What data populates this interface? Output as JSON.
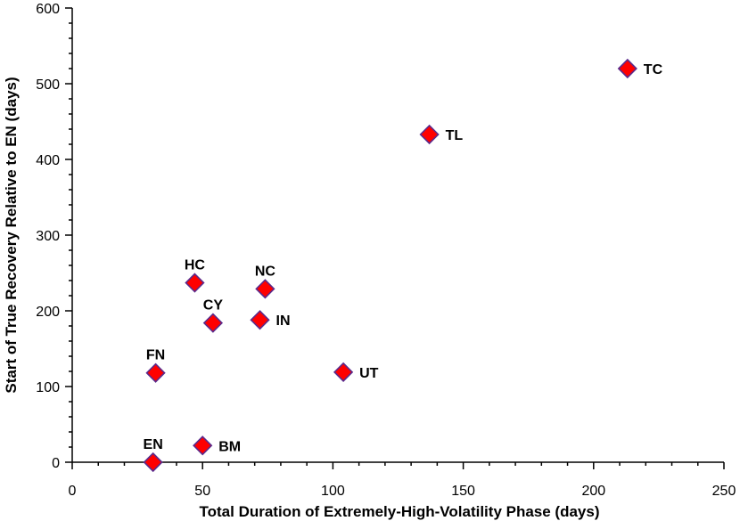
{
  "chart_data": {
    "type": "scatter",
    "title": "",
    "xlabel": "Total Duration of Extremely-High-Volatility Phase (days)",
    "ylabel": "Start of True Recovery Relative to EN (days)",
    "xlim": [
      0,
      250
    ],
    "ylim": [
      0,
      600
    ],
    "x_ticks": [
      0,
      50,
      100,
      150,
      200,
      250
    ],
    "y_ticks": [
      0,
      100,
      200,
      300,
      400,
      500,
      600
    ],
    "x_tick_labels": [
      "0",
      "50",
      "100",
      "150",
      "200",
      "250"
    ],
    "y_tick_labels": [
      "0",
      "100",
      "200",
      "300",
      "400",
      "500",
      "600"
    ],
    "grid": false,
    "marker": {
      "shape": "diamond",
      "fill": "#ff0000",
      "edge": "#5a2a8c"
    },
    "points": [
      {
        "label": "EN",
        "x": 31,
        "y": 0,
        "label_pos": "above"
      },
      {
        "label": "BM",
        "x": 50,
        "y": 22,
        "label_pos": "right"
      },
      {
        "label": "FN",
        "x": 32,
        "y": 118,
        "label_pos": "above"
      },
      {
        "label": "CY",
        "x": 54,
        "y": 184,
        "label_pos": "above"
      },
      {
        "label": "HC",
        "x": 47,
        "y": 237,
        "label_pos": "above"
      },
      {
        "label": "IN",
        "x": 72,
        "y": 188,
        "label_pos": "right"
      },
      {
        "label": "NC",
        "x": 74,
        "y": 229,
        "label_pos": "above"
      },
      {
        "label": "UT",
        "x": 104,
        "y": 119,
        "label_pos": "right"
      },
      {
        "label": "TL",
        "x": 137,
        "y": 433,
        "label_pos": "right"
      },
      {
        "label": "TC",
        "x": 213,
        "y": 520,
        "label_pos": "right"
      }
    ]
  }
}
